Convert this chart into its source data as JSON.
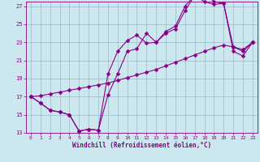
{
  "xlabel": "Windchill (Refroidissement éolien,°C)",
  "bg_color": "#cce8ee",
  "line_color": "#880088",
  "grid_color": "#99bbcc",
  "xlim": [
    -0.5,
    23.5
  ],
  "ylim": [
    13,
    27.5
  ],
  "xticks": [
    0,
    1,
    2,
    3,
    4,
    5,
    6,
    7,
    8,
    9,
    10,
    11,
    12,
    13,
    14,
    15,
    16,
    17,
    18,
    19,
    20,
    21,
    22,
    23
  ],
  "yticks": [
    13,
    15,
    17,
    19,
    21,
    23,
    25,
    27
  ],
  "line1_x": [
    0,
    1,
    2,
    3,
    4,
    5,
    6,
    7,
    8,
    9,
    10,
    11,
    12,
    13,
    14,
    15,
    16,
    17,
    18,
    19,
    20,
    21,
    22,
    23
  ],
  "line1_y": [
    17.0,
    16.3,
    15.5,
    15.3,
    15.0,
    13.2,
    13.4,
    13.3,
    17.2,
    19.5,
    22.0,
    22.3,
    24.0,
    23.0,
    24.0,
    24.5,
    26.5,
    28.2,
    28.4,
    27.5,
    27.3,
    22.0,
    21.5,
    23.0
  ],
  "line2_x": [
    0,
    1,
    2,
    3,
    4,
    5,
    6,
    7,
    8,
    9,
    10,
    11,
    12,
    13,
    14,
    15,
    16,
    17,
    18,
    19,
    20,
    21,
    22,
    23
  ],
  "line2_y": [
    17.0,
    16.3,
    15.5,
    15.3,
    15.0,
    13.2,
    13.4,
    13.3,
    19.5,
    22.0,
    23.2,
    23.8,
    22.9,
    23.0,
    24.2,
    24.8,
    27.0,
    28.2,
    27.5,
    27.2,
    27.3,
    22.5,
    22.0,
    23.0
  ],
  "line3_x": [
    0,
    1,
    2,
    3,
    4,
    5,
    6,
    7,
    8,
    9,
    10,
    11,
    12,
    13,
    14,
    15,
    16,
    17,
    18,
    19,
    20,
    21,
    22,
    23
  ],
  "line3_y": [
    17.0,
    17.1,
    17.3,
    17.5,
    17.7,
    17.9,
    18.1,
    18.3,
    18.5,
    18.8,
    19.1,
    19.4,
    19.7,
    20.0,
    20.4,
    20.8,
    21.2,
    21.6,
    22.0,
    22.4,
    22.7,
    22.5,
    22.2,
    23.0
  ],
  "marker": "D",
  "marker_size": 2.5,
  "lw": 0.8
}
